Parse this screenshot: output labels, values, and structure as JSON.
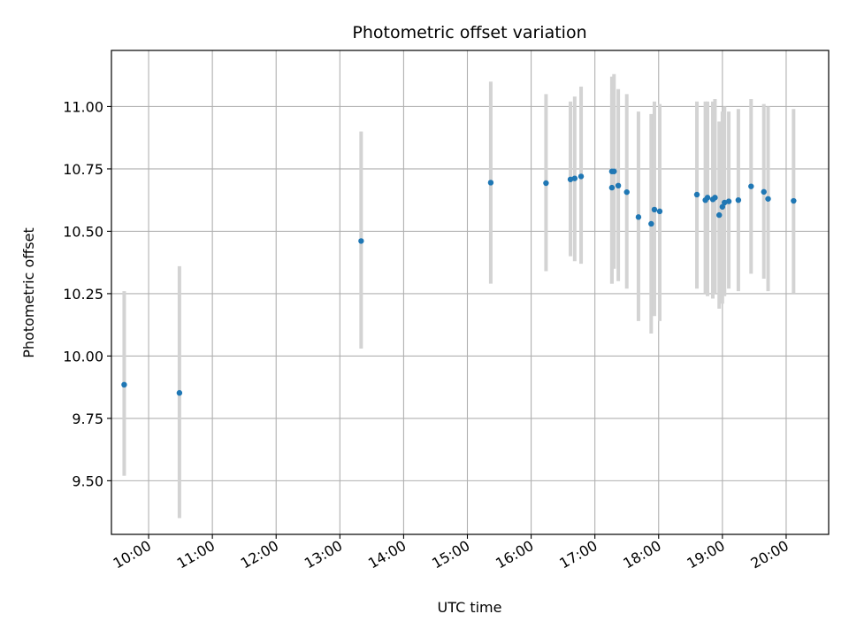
{
  "chart_data": {
    "type": "scatter",
    "title": "Photometric offset variation",
    "xlabel": "UTC time",
    "ylabel": "Photometric offset",
    "grid": true,
    "x_ticks": [
      "10:00",
      "11:00",
      "12:00",
      "13:00",
      "14:00",
      "15:00",
      "16:00",
      "17:00",
      "18:00",
      "19:00",
      "20:00"
    ],
    "y_ticks": [
      "9.50",
      "9.75",
      "10.00",
      "10.25",
      "10.50",
      "10.75",
      "11.00"
    ],
    "xlim": [
      "09:25",
      "20:40"
    ],
    "ylim": [
      9.285,
      11.225
    ],
    "point_color": "#1f77b4",
    "errorbar_color": "#d3d3d3",
    "points": [
      {
        "x": "09:37",
        "y": 9.885,
        "lo": 9.52,
        "hi": 10.26
      },
      {
        "x": "10:29",
        "y": 9.852,
        "lo": 9.35,
        "hi": 10.36
      },
      {
        "x": "13:20",
        "y": 10.461,
        "lo": 10.03,
        "hi": 10.9
      },
      {
        "x": "15:22",
        "y": 10.695,
        "lo": 10.29,
        "hi": 11.1
      },
      {
        "x": "16:14",
        "y": 10.693,
        "lo": 10.34,
        "hi": 11.05
      },
      {
        "x": "16:37",
        "y": 10.708,
        "lo": 10.4,
        "hi": 11.02
      },
      {
        "x": "16:41",
        "y": 10.712,
        "lo": 10.38,
        "hi": 11.04
      },
      {
        "x": "16:47",
        "y": 10.72,
        "lo": 10.37,
        "hi": 11.08
      },
      {
        "x": "17:16",
        "y": 10.74,
        "lo": 10.29,
        "hi": 11.12
      },
      {
        "x": "17:18",
        "y": 10.74,
        "lo": 10.35,
        "hi": 11.13
      },
      {
        "x": "17:16",
        "y": 10.675,
        "lo": 10.29,
        "hi": 11.05
      },
      {
        "x": "17:22",
        "y": 10.683,
        "lo": 10.3,
        "hi": 11.07
      },
      {
        "x": "17:30",
        "y": 10.657,
        "lo": 10.27,
        "hi": 11.05
      },
      {
        "x": "17:41",
        "y": 10.557,
        "lo": 10.14,
        "hi": 10.98
      },
      {
        "x": "17:53",
        "y": 10.53,
        "lo": 10.09,
        "hi": 10.97
      },
      {
        "x": "17:56",
        "y": 10.587,
        "lo": 10.16,
        "hi": 11.02
      },
      {
        "x": "18:01",
        "y": 10.58,
        "lo": 10.14,
        "hi": 11.01
      },
      {
        "x": "18:36",
        "y": 10.647,
        "lo": 10.27,
        "hi": 11.02
      },
      {
        "x": "18:44",
        "y": 10.625,
        "lo": 10.25,
        "hi": 11.02
      },
      {
        "x": "18:46",
        "y": 10.635,
        "lo": 10.24,
        "hi": 11.02
      },
      {
        "x": "18:51",
        "y": 10.628,
        "lo": 10.23,
        "hi": 11.02
      },
      {
        "x": "18:53",
        "y": 10.635,
        "lo": 10.25,
        "hi": 11.03
      },
      {
        "x": "18:57",
        "y": 10.565,
        "lo": 10.19,
        "hi": 10.94
      },
      {
        "x": "19:00",
        "y": 10.598,
        "lo": 10.21,
        "hi": 10.98
      },
      {
        "x": "19:02",
        "y": 10.615,
        "lo": 10.24,
        "hi": 11.0
      },
      {
        "x": "19:06",
        "y": 10.62,
        "lo": 10.27,
        "hi": 10.98
      },
      {
        "x": "19:15",
        "y": 10.625,
        "lo": 10.26,
        "hi": 10.99
      },
      {
        "x": "19:27",
        "y": 10.68,
        "lo": 10.33,
        "hi": 11.03
      },
      {
        "x": "19:39",
        "y": 10.658,
        "lo": 10.31,
        "hi": 11.01
      },
      {
        "x": "19:43",
        "y": 10.63,
        "lo": 10.26,
        "hi": 11.0
      },
      {
        "x": "20:07",
        "y": 10.622,
        "lo": 10.25,
        "hi": 10.99
      }
    ]
  }
}
